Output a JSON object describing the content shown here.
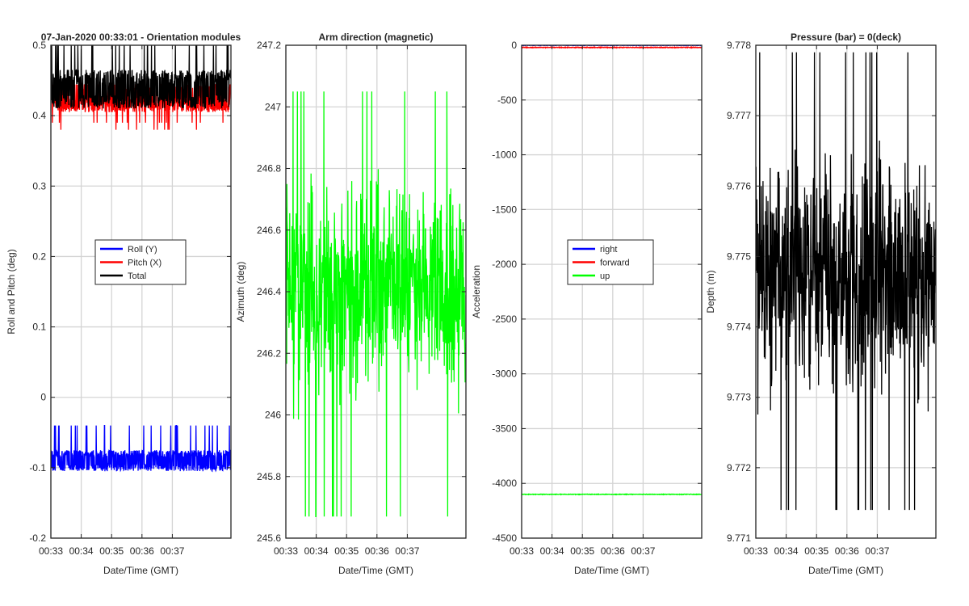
{
  "figure": {
    "background": "#ffffff",
    "grid_color": "#d4d4d4",
    "axes_color": "#262626"
  },
  "chart_data": [
    {
      "type": "line",
      "title": "07-Jan-2020 00:33:01 - Orientation modules",
      "xlabel": "Date/Time (GMT)",
      "ylabel": "Roll and Pitch (deg)",
      "x_ticks": [
        "00:33",
        "00:34",
        "00:35",
        "00:36",
        "00:37"
      ],
      "y_ticks": [
        "-0.2",
        "-0.1",
        "0",
        "0.1",
        "0.2",
        "0.3",
        "0.4",
        "0.5"
      ],
      "ylim": [
        -0.2,
        0.5
      ],
      "xlim_minutes": [
        0,
        5.93
      ],
      "grid": true,
      "legend": {
        "placement": "center",
        "entries": [
          {
            "name": "Roll (Y)",
            "color": "#0000ff"
          },
          {
            "name": "Pitch (X)",
            "color": "#ff0000"
          },
          {
            "name": "Total",
            "color": "#000000"
          }
        ]
      },
      "series": [
        {
          "name": "Roll (Y)",
          "color": "#0000ff",
          "baseline": -0.1,
          "levels": [
            -0.1,
            -0.08
          ],
          "spikes": [
            -0.04
          ],
          "noise": 0.02
        },
        {
          "name": "Pitch (X)",
          "color": "#ff0000",
          "baseline": 0.415,
          "levels": [
            0.41,
            0.42,
            0.44
          ],
          "spikes": [
            0.38,
            0.39
          ],
          "noise": 0.02
        },
        {
          "name": "Total",
          "color": "#000000",
          "baseline": 0.455,
          "levels": [
            0.42,
            0.455
          ],
          "spikes": [
            0.5
          ],
          "noise": 0.04
        }
      ]
    },
    {
      "type": "line",
      "title": "Arm direction (magnetic)",
      "xlabel": "Date/Time (GMT)",
      "ylabel": "Azimuth (deg)",
      "x_ticks": [
        "00:33",
        "00:34",
        "00:35",
        "00:36",
        "00:37"
      ],
      "y_ticks": [
        "245.6",
        "245.8",
        "246",
        "246.2",
        "246.4",
        "246.6",
        "246.8",
        "247",
        "247.2"
      ],
      "ylim": [
        245.6,
        247.2
      ],
      "xlim_minutes": [
        0,
        5.93
      ],
      "grid": true,
      "series": [
        {
          "name": "",
          "color": "#00ff00",
          "baseline": 246.4,
          "range": [
            245.67,
            247.05
          ],
          "noise": 0.22
        }
      ]
    },
    {
      "type": "line",
      "title": "",
      "xlabel": "Date/Time (GMT)",
      "ylabel": "Acceleration",
      "x_ticks": [
        "00:33",
        "00:34",
        "00:35",
        "00:36",
        "00:37"
      ],
      "y_ticks": [
        "-4500",
        "-4000",
        "-3500",
        "-3000",
        "-2500",
        "-2000",
        "-1500",
        "-1000",
        "-500",
        "0"
      ],
      "ylim": [
        -4500,
        0
      ],
      "xlim_minutes": [
        0,
        5.93
      ],
      "grid": true,
      "legend": {
        "placement": "center",
        "entries": [
          {
            "name": "right",
            "color": "#0000ff"
          },
          {
            "name": "forward",
            "color": "#ff0000"
          },
          {
            "name": "up",
            "color": "#00ff00"
          }
        ]
      },
      "series": [
        {
          "name": "right",
          "color": "#0000ff",
          "baseline": 0,
          "noise": 6
        },
        {
          "name": "forward",
          "color": "#ff0000",
          "baseline": -20,
          "noise": 6
        },
        {
          "name": "up",
          "color": "#00ff00",
          "baseline": -4100,
          "noise": 5
        }
      ]
    },
    {
      "type": "line",
      "title": "Pressure (bar) = 0(deck)",
      "xlabel": "Date/Time (GMT)",
      "ylabel": "Depth (m)",
      "x_ticks": [
        "00:33",
        "00:34",
        "00:35",
        "00:36",
        "00:37"
      ],
      "y_ticks": [
        "9.771",
        "9.772",
        "9.773",
        "9.774",
        "9.775",
        "9.776",
        "9.777",
        "9.778"
      ],
      "ylim": [
        9.771,
        9.778
      ],
      "xlim_minutes": [
        0,
        5.93
      ],
      "grid": true,
      "series": [
        {
          "name": "",
          "color": "#000000",
          "baseline": 9.7747,
          "range": [
            9.7714,
            9.7779
          ],
          "noise": 0.0011
        }
      ]
    }
  ]
}
